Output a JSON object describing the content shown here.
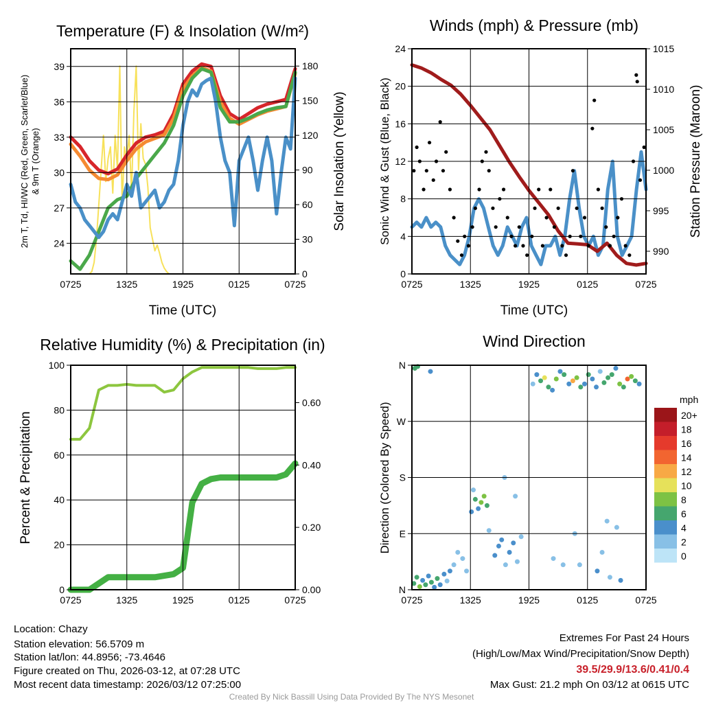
{
  "chart_data": [
    {
      "type": "line",
      "title": "Temperature (F) & Insolation (W/m²)",
      "xlabel": "Time (UTC)",
      "ylabel": "2m T, Td, HI/WC (Red, Green, Scarlet/Blue)",
      "ylabel2": "& 9m T (Orange)",
      "y2label": "Solar Insolation (Yellow)",
      "xticks": [
        "0725",
        "1325",
        "1925",
        "0125",
        "0725"
      ],
      "yticks": [
        "24",
        "27",
        "30",
        "33",
        "36",
        "39"
      ],
      "y2ticks": [
        "0",
        "30",
        "60",
        "90",
        "120",
        "150",
        "180"
      ],
      "ylim": [
        21.4,
        40.5
      ],
      "y2lim": [
        0,
        195
      ],
      "xlim_hours": [
        0,
        24
      ],
      "series": [
        {
          "name": "Insolation",
          "axis": "right",
          "color": "#f7e15a",
          "values": [
            0,
            0,
            0,
            0,
            0,
            0,
            0,
            0,
            0,
            2,
            10,
            30,
            60,
            90,
            120,
            80,
            100,
            110,
            70,
            120,
            90,
            180,
            60,
            110,
            100,
            120,
            70,
            140,
            180,
            90,
            130,
            100,
            95,
            75,
            40,
            30,
            20,
            25,
            18,
            10,
            5,
            2,
            0,
            0,
            0,
            0,
            0,
            0,
            0,
            0,
            0,
            0,
            0,
            0,
            0,
            0,
            0,
            0,
            0,
            0,
            0,
            0,
            0,
            0,
            0,
            0,
            0,
            0,
            0,
            0,
            0,
            0,
            0,
            0,
            0,
            0,
            0,
            0,
            0,
            0,
            0,
            0,
            0,
            0,
            0,
            0,
            0,
            0,
            0,
            0,
            0,
            0,
            0,
            0,
            0,
            0,
            0
          ]
        },
        {
          "name": "2m T (Red)",
          "axis": "left",
          "color": "#d7262b",
          "values": [
            33,
            32.2,
            31,
            30.2,
            29.9,
            30.3,
            31.5,
            32.5,
            33,
            33.2,
            33.5,
            35,
            37.5,
            38.6,
            39.2,
            39,
            36.5,
            35,
            34.5,
            35,
            35.5,
            35.8,
            36,
            36.2,
            38.8
          ]
        },
        {
          "name": "9m T (Orange)",
          "axis": "left",
          "color": "#f58a32",
          "values": [
            32.4,
            31.4,
            30.2,
            29.5,
            29.4,
            29.8,
            31,
            32,
            32.6,
            32.9,
            33.2,
            34.6,
            37.1,
            38.2,
            38.9,
            38.6,
            36,
            34.6,
            34.1,
            34.5,
            34.9,
            35.2,
            35.4,
            35.6,
            38.4
          ]
        },
        {
          "name": "Td (Green)",
          "axis": "left",
          "color": "#4aa84a",
          "values": [
            22.5,
            21.8,
            23,
            25,
            27,
            27.7,
            28,
            29.5,
            30.5,
            31.5,
            32.5,
            34,
            36.5,
            38,
            38.8,
            38.5,
            35.5,
            34.3,
            34.3,
            34.6,
            35,
            35.3,
            35.5,
            35.6,
            38.5
          ]
        },
        {
          "name": "HI/WC (Blue)",
          "axis": "left",
          "color": "#4a90c8",
          "values": [
            29,
            27.5,
            27,
            26,
            25.5,
            25,
            24.5,
            25,
            26,
            26.5,
            26,
            27.5,
            29,
            28,
            30,
            27,
            27.5,
            28,
            28.5,
            27,
            27.5,
            28.5,
            29,
            31,
            34,
            36,
            37,
            36.5,
            37.5,
            37.8,
            38,
            36,
            33,
            31,
            30,
            25.5,
            31,
            32,
            33,
            31,
            28.5,
            31,
            33,
            31,
            26.5,
            30,
            33,
            32,
            38
          ]
        }
      ]
    },
    {
      "type": "line",
      "title": "Winds (mph) & Pressure (mb)",
      "xlabel": "Time (UTC)",
      "ylabel": "Sonic Wind & Gust (Blue, Black)",
      "y2label": "Station Pressure (Maroon)",
      "xticks": [
        "0725",
        "1325",
        "1925",
        "0125",
        "0725"
      ],
      "yticks": [
        "0",
        "4",
        "8",
        "12",
        "16",
        "20",
        "24"
      ],
      "y2ticks": [
        "990",
        "995",
        "1000",
        "1005",
        "1010",
        "1015"
      ],
      "ylim": [
        0,
        24
      ],
      "y2lim": [
        987.2,
        1015
      ],
      "series": [
        {
          "name": "Sonic Wind (Blue)",
          "axis": "left",
          "color": "#4a90c8",
          "values": [
            5,
            5.5,
            5,
            6,
            5,
            5.5,
            5,
            3,
            2,
            1.5,
            1,
            2,
            4,
            7,
            8,
            7,
            5,
            3,
            2,
            3,
            5,
            4,
            3,
            5,
            6,
            3,
            2,
            1,
            3,
            3,
            4,
            2,
            4,
            8,
            11,
            7,
            4,
            3,
            4,
            2,
            3,
            9,
            12,
            4,
            2,
            3,
            4,
            9,
            13,
            9
          ]
        },
        {
          "name": "Pressure (Maroon)",
          "axis": "right",
          "color": "#a01c1c",
          "values": [
            1013,
            1012.6,
            1012,
            1011.2,
            1010.5,
            1009.4,
            1008,
            1006.5,
            1005,
            1003,
            1001,
            999.2,
            997.5,
            996,
            994.5,
            992.5,
            991,
            990.9,
            990.8,
            990,
            991,
            989.5,
            988.5,
            988.3,
            988.5
          ]
        },
        {
          "name": "Gust (Black)",
          "axis": "left",
          "color": "#000000",
          "points": [
            [
              0.2,
              11
            ],
            [
              0.5,
              13.5
            ],
            [
              0.8,
              12
            ],
            [
              1.2,
              9
            ],
            [
              1.5,
              11
            ],
            [
              1.8,
              14
            ],
            [
              2.2,
              10
            ],
            [
              2.5,
              12
            ],
            [
              2.9,
              16.2
            ],
            [
              3.2,
              11
            ],
            [
              3.5,
              13
            ],
            [
              3.9,
              9
            ],
            [
              4.3,
              6
            ],
            [
              4.7,
              3.5
            ],
            [
              5.1,
              2
            ],
            [
              5.4,
              4
            ],
            [
              5.8,
              3
            ],
            [
              6.2,
              5
            ],
            [
              6.5,
              7
            ],
            [
              6.9,
              9
            ],
            [
              7.2,
              12
            ],
            [
              7.6,
              13
            ],
            [
              7.9,
              11
            ],
            [
              8.3,
              7
            ],
            [
              8.6,
              5
            ],
            [
              9,
              8
            ],
            [
              9.4,
              9
            ],
            [
              9.8,
              6
            ],
            [
              10.2,
              4
            ],
            [
              10.6,
              3
            ],
            [
              11,
              5
            ],
            [
              11.4,
              3
            ],
            [
              11.8,
              2
            ],
            [
              12.3,
              4
            ],
            [
              12.6,
              7
            ],
            [
              13,
              9
            ],
            [
              13.4,
              3
            ],
            [
              13.8,
              6
            ],
            [
              14.2,
              9
            ],
            [
              14.6,
              5
            ],
            [
              15,
              7
            ],
            [
              15.4,
              3
            ],
            [
              15.8,
              2
            ],
            [
              16.2,
              4
            ],
            [
              16.5,
              11
            ],
            [
              16.9,
              7
            ],
            [
              17.3,
              4
            ],
            [
              17.7,
              6
            ],
            [
              18.1,
              3
            ],
            [
              18.5,
              15.5
            ],
            [
              18.7,
              18.5
            ],
            [
              19.1,
              9
            ],
            [
              19.5,
              7
            ],
            [
              19.9,
              5
            ],
            [
              20.3,
              3
            ],
            [
              20.7,
              4
            ],
            [
              21.1,
              6
            ],
            [
              21.5,
              8
            ],
            [
              21.9,
              3
            ],
            [
              22.3,
              2
            ],
            [
              22.7,
              12
            ],
            [
              23,
              21.2
            ],
            [
              23.1,
              20.5
            ],
            [
              23.4,
              10
            ],
            [
              23.8,
              13.5
            ]
          ]
        }
      ]
    },
    {
      "type": "line",
      "title": "Relative Humidity (%) & Precipitation (in)",
      "ylabel": "Percent & Precipitation",
      "xticks": [
        "0725",
        "1325",
        "1925",
        "0125",
        "0725"
      ],
      "yticks": [
        "0",
        "20",
        "40",
        "60",
        "80",
        "100"
      ],
      "y2ticks": [
        "0.00",
        "0.20",
        "0.40",
        "0.60"
      ],
      "ylim": [
        0,
        100
      ],
      "y2lim": [
        0,
        0.72
      ],
      "series": [
        {
          "name": "Relative Humidity",
          "axis": "left",
          "color": "#8dc63f",
          "values": [
            67,
            67,
            72,
            89,
            91,
            91,
            91.5,
            91,
            91,
            91,
            88,
            89,
            94,
            97,
            99,
            99,
            99,
            99,
            99,
            99,
            98.5,
            98.5,
            98.5,
            99,
            99
          ]
        },
        {
          "name": "Precipitation",
          "axis": "right",
          "color": "#44b044",
          "values": [
            0,
            0,
            0,
            0.02,
            0.04,
            0.04,
            0.04,
            0.04,
            0.04,
            0.04,
            0.045,
            0.05,
            0.07,
            0.28,
            0.34,
            0.355,
            0.36,
            0.36,
            0.36,
            0.36,
            0.36,
            0.36,
            0.36,
            0.37,
            0.405
          ]
        }
      ]
    },
    {
      "type": "scatter",
      "title": "Wind Direction",
      "ylabel": "Direction (Colored By Speed)",
      "xticks": [
        "0725",
        "1325",
        "1925",
        "0125",
        "0725"
      ],
      "yticks": [
        "N",
        "E",
        "S",
        "W",
        "N"
      ],
      "ylim": [
        0,
        360
      ],
      "legend_title": "mph",
      "legend": [
        "0",
        "2",
        "4",
        "6",
        "8",
        "10",
        "12",
        "14",
        "16",
        "18",
        "20+"
      ],
      "legend_colors": [
        "#bde4f7",
        "#88c0e6",
        "#4a8fcb",
        "#45a66e",
        "#7dc244",
        "#e6e15a",
        "#f8a945",
        "#f26530",
        "#e53a2c",
        "#c41e2a",
        "#9b1519"
      ],
      "points": [
        [
          0.2,
          10,
          6
        ],
        [
          0.5,
          20,
          5
        ],
        [
          0.8,
          5,
          7
        ],
        [
          1.1,
          15,
          4
        ],
        [
          1.4,
          8,
          6
        ],
        [
          1.7,
          22,
          3
        ],
        [
          2,
          12,
          5
        ],
        [
          2.3,
          4,
          4
        ],
        [
          2.6,
          18,
          5
        ],
        [
          2.9,
          8,
          3
        ],
        [
          3.3,
          25,
          4
        ],
        [
          3.6,
          14,
          2
        ],
        [
          3.9,
          30,
          3
        ],
        [
          4.3,
          40,
          2
        ],
        [
          4.7,
          60,
          1
        ],
        [
          5.2,
          50,
          2
        ],
        [
          5.6,
          30,
          1
        ],
        [
          0.3,
          355,
          6
        ],
        [
          0.6,
          358,
          5
        ],
        [
          1.9,
          350,
          3
        ],
        [
          6.1,
          125,
          3
        ],
        [
          6.5,
          145,
          5
        ],
        [
          6.8,
          130,
          4
        ],
        [
          7.1,
          140,
          7
        ],
        [
          7.4,
          150,
          8
        ],
        [
          7.7,
          135,
          6
        ],
        [
          6.3,
          160,
          2
        ],
        [
          7.9,
          95,
          2
        ],
        [
          8.5,
          55,
          3
        ],
        [
          8.9,
          70,
          4
        ],
        [
          9.2,
          80,
          3
        ],
        [
          9.6,
          40,
          2
        ],
        [
          10,
          60,
          3
        ],
        [
          10.4,
          75,
          4
        ],
        [
          10.8,
          45,
          1
        ],
        [
          11.2,
          85,
          2
        ],
        [
          12.4,
          330,
          2
        ],
        [
          12.8,
          345,
          3
        ],
        [
          13.2,
          335,
          5
        ],
        [
          13.6,
          340,
          10
        ],
        [
          14,
          325,
          6
        ],
        [
          14.4,
          320,
          4
        ],
        [
          14.8,
          338,
          8
        ],
        [
          15.2,
          350,
          4
        ],
        [
          15.6,
          345,
          5
        ],
        [
          16.1,
          330,
          3
        ],
        [
          16.5,
          335,
          12
        ],
        [
          16.9,
          340,
          8
        ],
        [
          17.3,
          325,
          6
        ],
        [
          17.7,
          330,
          4
        ],
        [
          18.1,
          345,
          5
        ],
        [
          18.5,
          338,
          3
        ],
        [
          18.9,
          325,
          4
        ],
        [
          19.3,
          350,
          2
        ],
        [
          19.7,
          332,
          5
        ],
        [
          20.1,
          340,
          6
        ],
        [
          20.5,
          345,
          5
        ],
        [
          20.9,
          355,
          3
        ],
        [
          21.3,
          330,
          7
        ],
        [
          21.7,
          325,
          5
        ],
        [
          22.1,
          338,
          14
        ],
        [
          22.5,
          342,
          7
        ],
        [
          22.9,
          335,
          6
        ],
        [
          23.3,
          330,
          4
        ],
        [
          14.5,
          50,
          2
        ],
        [
          16.7,
          90,
          1
        ],
        [
          17.2,
          40,
          2
        ],
        [
          19,
          30,
          3
        ],
        [
          19.5,
          60,
          2
        ],
        [
          20,
          110,
          1
        ],
        [
          20.3,
          20,
          2
        ],
        [
          21,
          100,
          1
        ],
        [
          21.4,
          15,
          3
        ],
        [
          10.6,
          150,
          1
        ],
        [
          9.5,
          180,
          1
        ],
        [
          15.5,
          40,
          2
        ]
      ]
    }
  ],
  "info": {
    "location": "Location: Chazy",
    "elevation": "Station elevation: 56.5709 m",
    "latlon": "Station lat/lon: 44.8956; -73.4646",
    "created": "Figure created on Thu, 2026-03-12, at 07:28 UTC",
    "recent": "Most recent data timestamp: 2026/03/12 07:25:00"
  },
  "extremes": {
    "title": "Extremes For Past 24 Hours",
    "subtitle": "(High/Low/Max Wind/Precipitation/Snow Depth)",
    "values": "39.5/29.9/13.6/0.41/0.4",
    "max_gust": "Max Gust: 21.2 mph On 03/12 at 0615 UTC"
  },
  "credit": "Created By Nick Bassill Using Data Provided By The NYS Mesonet"
}
